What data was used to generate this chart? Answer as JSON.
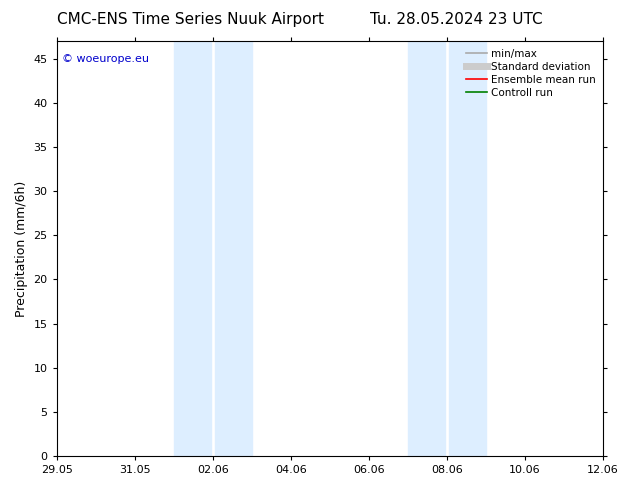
{
  "title_left": "CMC-ENS Time Series Nuuk Airport",
  "title_right": "Tu. 28.05.2024 23 UTC",
  "ylabel": "Precipitation (mm/6h)",
  "xlabel_ticks": [
    "29.05",
    "31.05",
    "02.06",
    "04.06",
    "06.06",
    "08.06",
    "10.06",
    "12.06"
  ],
  "x_tick_positions": [
    0,
    2,
    4,
    6,
    8,
    10,
    12,
    14
  ],
  "xlim": [
    0,
    14
  ],
  "ylim": [
    0,
    47
  ],
  "yticks": [
    0,
    5,
    10,
    15,
    20,
    25,
    30,
    35,
    40,
    45
  ],
  "background_color": "#ffffff",
  "plot_bg_color": "#ffffff",
  "shaded_regions": [
    {
      "x_start": 3.0,
      "x_end": 3.95,
      "color": "#ddeeff"
    },
    {
      "x_start": 4.05,
      "x_end": 5.0,
      "color": "#ddeeff"
    },
    {
      "x_start": 9.0,
      "x_end": 9.95,
      "color": "#ddeeff"
    },
    {
      "x_start": 10.05,
      "x_end": 11.0,
      "color": "#ddeeff"
    }
  ],
  "watermark_text": "© woeurope.eu",
  "watermark_color": "#0000cc",
  "legend_items": [
    {
      "label": "min/max",
      "color": "#aaaaaa",
      "lw": 1.2,
      "style": "solid"
    },
    {
      "label": "Standard deviation",
      "color": "#cccccc",
      "lw": 5,
      "style": "solid"
    },
    {
      "label": "Ensemble mean run",
      "color": "#ff0000",
      "lw": 1.2,
      "style": "solid"
    },
    {
      "label": "Controll run",
      "color": "#008000",
      "lw": 1.2,
      "style": "solid"
    }
  ],
  "title_fontsize": 11,
  "tick_fontsize": 8,
  "ylabel_fontsize": 9,
  "watermark_fontsize": 8,
  "legend_fontsize": 7.5
}
